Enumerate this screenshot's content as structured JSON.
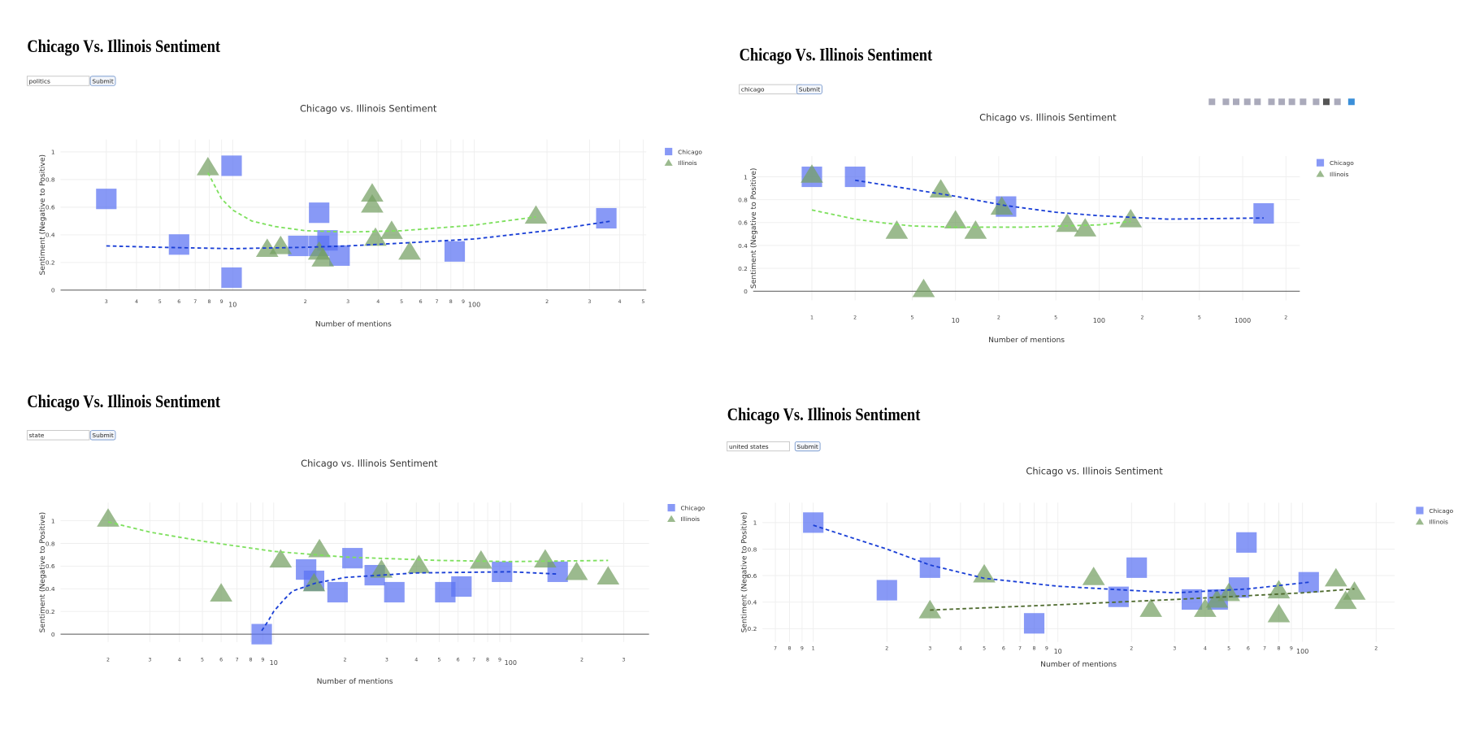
{
  "panels": [
    {
      "heading": "Chicago Vs. Illinois Sentiment",
      "query": "politics",
      "button": "Submit"
    },
    {
      "heading": "Chicago Vs. Illinois Sentiment",
      "query": "chicago",
      "button": "Submit"
    },
    {
      "heading": "Chicago Vs. Illinois Sentiment",
      "query": "state",
      "button": "Submit"
    },
    {
      "heading": "Chicago Vs. Illinois Sentiment",
      "query": "united states",
      "button": "Submit"
    }
  ],
  "chart_data": [
    {
      "type": "scatter",
      "title": "Chicago vs. Illinois Sentiment",
      "x_label": "Number of mentions",
      "y_label": "Sentiment (Negative to Positive)",
      "log_x": true,
      "grid": true,
      "xlim": [
        1.94,
        515
      ],
      "ylim": [
        0,
        1.09
      ],
      "xticks": [
        3,
        4,
        5,
        6,
        7,
        8,
        9,
        10,
        {
          "value": 20,
          "label": "2"
        },
        {
          "value": 30,
          "label": "3"
        },
        {
          "value": 40,
          "label": "4"
        },
        {
          "value": 50,
          "label": "5"
        },
        {
          "value": 60,
          "label": "6"
        },
        {
          "value": 70,
          "label": "7"
        },
        {
          "value": 80,
          "label": "8"
        },
        {
          "value": 90,
          "label": "9"
        },
        100,
        {
          "value": 200,
          "label": "2"
        },
        {
          "value": 300,
          "label": "3"
        },
        {
          "value": 400,
          "label": "4"
        },
        {
          "value": 500,
          "label": "5"
        }
      ],
      "yticks": [
        0,
        0.2,
        0.4,
        0.6,
        0.8,
        1
      ],
      "series": [
        {
          "name": "Chicago",
          "color": "#5a72f2",
          "marker": "square",
          "x": [
            3,
            6,
            9.9,
            9.9,
            22.8,
            18.7,
            22.8,
            24.7,
            27.7,
            83,
            352
          ],
          "values": [
            0.66,
            0.33,
            0.9,
            0.09,
            0.56,
            0.32,
            0.32,
            0.36,
            0.25,
            0.28,
            0.52
          ]
        },
        {
          "name": "Illinois",
          "color": "#74a062",
          "marker": "triangle",
          "x": [
            7.9,
            13.9,
            15.8,
            22.8,
            23.6,
            37.8,
            37.8,
            39,
            45.5,
            54,
            180
          ],
          "values": [
            0.89,
            0.3,
            0.32,
            0.28,
            0.23,
            0.7,
            0.62,
            0.38,
            0.43,
            0.28,
            0.54
          ]
        }
      ],
      "trendlines": [
        {
          "color": "#1a3fd6",
          "x": [
            3,
            5,
            10,
            20,
            30,
            50,
            100,
            200,
            370
          ],
          "values": [
            0.32,
            0.31,
            0.3,
            0.31,
            0.32,
            0.34,
            0.37,
            0.43,
            0.5
          ]
        },
        {
          "color": "#7ee05e",
          "x": [
            7.9,
            9,
            10,
            12,
            15,
            20,
            30,
            50,
            100,
            180
          ],
          "values": [
            0.85,
            0.66,
            0.58,
            0.5,
            0.46,
            0.43,
            0.42,
            0.43,
            0.47,
            0.53
          ]
        }
      ]
    },
    {
      "type": "scatter",
      "title": "Chicago vs. Illinois Sentiment",
      "x_label": "Number of mentions",
      "y_label": "Sentiment (Negative to Positive)",
      "log_x": true,
      "grid": true,
      "xlim": [
        0.39,
        2500
      ],
      "ylim": [
        -0.08,
        1.18
      ],
      "xticks": [
        1,
        2,
        5,
        10,
        {
          "value": 20,
          "label": "2"
        },
        {
          "value": 50,
          "label": "5"
        },
        100,
        {
          "value": 200,
          "label": "2"
        },
        {
          "value": 500,
          "label": "5"
        },
        1000,
        {
          "value": 2000,
          "label": "2"
        }
      ],
      "yticks": [
        0,
        0.2,
        0.4,
        0.6,
        0.8,
        1
      ],
      "series": [
        {
          "name": "Chicago",
          "color": "#5a72f2",
          "marker": "square",
          "x": [
            1,
            2,
            22.5,
            1400
          ],
          "values": [
            1,
            1,
            0.74,
            0.68
          ]
        },
        {
          "name": "Illinois",
          "color": "#74a062",
          "marker": "triangle",
          "x": [
            1,
            7.9,
            3.9,
            6,
            10,
            13.8,
            21,
            60,
            80,
            166
          ],
          "values": [
            1.02,
            0.89,
            0.53,
            0.02,
            0.62,
            0.53,
            0.74,
            0.59,
            0.55,
            0.63
          ]
        }
      ],
      "trendlines": [
        {
          "color": "#1a3fd6",
          "x": [
            2,
            5,
            10,
            22,
            50,
            100,
            300,
            1400
          ],
          "values": [
            0.97,
            0.89,
            0.83,
            0.75,
            0.69,
            0.66,
            0.63,
            0.64
          ]
        },
        {
          "color": "#7ee05e",
          "x": [
            1,
            2,
            3,
            5,
            10,
            30,
            100,
            166
          ],
          "values": [
            0.71,
            0.63,
            0.6,
            0.57,
            0.56,
            0.56,
            0.58,
            0.61
          ]
        }
      ]
    },
    {
      "type": "scatter",
      "title": "Chicago vs. Illinois Sentiment",
      "x_label": "Number of mentions",
      "y_label": "Sentiment (Negative to Positive)",
      "log_x": true,
      "grid": true,
      "xlim": [
        1.26,
        384
      ],
      "ylim": [
        -0.07,
        1.16
      ],
      "xticks": [
        2,
        3,
        4,
        5,
        6,
        7,
        8,
        9,
        10,
        {
          "value": 20,
          "label": "2"
        },
        {
          "value": 30,
          "label": "3"
        },
        {
          "value": 40,
          "label": "4"
        },
        {
          "value": 50,
          "label": "5"
        },
        {
          "value": 60,
          "label": "6"
        },
        {
          "value": 70,
          "label": "7"
        },
        {
          "value": 80,
          "label": "8"
        },
        {
          "value": 90,
          "label": "9"
        },
        100,
        {
          "value": 200,
          "label": "2"
        },
        {
          "value": 300,
          "label": "3"
        }
      ],
      "yticks": [
        0,
        0.2,
        0.4,
        0.6,
        0.8,
        1
      ],
      "series": [
        {
          "name": "Chicago",
          "color": "#5a72f2",
          "marker": "square",
          "x": [
            8.9,
            13.7,
            14.8,
            18.6,
            21.5,
            26.7,
            32.3,
            53,
            62,
            92,
            158
          ],
          "values": [
            0,
            0.57,
            0.47,
            0.37,
            0.67,
            0.52,
            0.37,
            0.37,
            0.42,
            0.55,
            0.55
          ]
        },
        {
          "name": "Illinois",
          "color": "#74a062",
          "marker": "triangle",
          "x": [
            2,
            6,
            10.7,
            15.6,
            14.8,
            28.5,
            41,
            75,
            140,
            190,
            258
          ],
          "values": [
            1.02,
            0.36,
            0.66,
            0.75,
            0.45,
            0.57,
            0.61,
            0.65,
            0.66,
            0.55,
            0.51
          ]
        }
      ],
      "trendlines": [
        {
          "color": "#1a3fd6",
          "x": [
            8.9,
            9.5,
            10,
            11,
            12,
            15,
            20,
            40,
            100,
            158
          ],
          "values": [
            0.03,
            0.12,
            0.2,
            0.3,
            0.38,
            0.45,
            0.5,
            0.54,
            0.55,
            0.53
          ]
        },
        {
          "color": "#7ee05e",
          "x": [
            2,
            3,
            5,
            10,
            20,
            50,
            100,
            258
          ],
          "values": [
            0.99,
            0.9,
            0.82,
            0.73,
            0.68,
            0.65,
            0.64,
            0.65
          ]
        }
      ]
    },
    {
      "type": "scatter",
      "title": "Chicago vs. Illinois Sentiment",
      "x_label": "Number of mentions",
      "y_label": "Sentiment (Negative to Positive)",
      "log_x": true,
      "grid": true,
      "xlim": [
        0.62,
        238
      ],
      "ylim": [
        0.1,
        1.15
      ],
      "xticks": [
        {
          "value": 0.7,
          "label": "7"
        },
        {
          "value": 0.8,
          "label": "8"
        },
        {
          "value": 0.9,
          "label": "9"
        },
        1,
        2,
        3,
        4,
        5,
        6,
        7,
        8,
        9,
        10,
        {
          "value": 20,
          "label": "2"
        },
        {
          "value": 30,
          "label": "3"
        },
        {
          "value": 40,
          "label": "4"
        },
        {
          "value": 50,
          "label": "5"
        },
        {
          "value": 60,
          "label": "6"
        },
        {
          "value": 70,
          "label": "7"
        },
        {
          "value": 80,
          "label": "8"
        },
        {
          "value": 90,
          "label": "9"
        },
        100,
        {
          "value": 200,
          "label": "2"
        }
      ],
      "yticks": [
        0.2,
        0.4,
        0.6,
        0.8,
        1
      ],
      "series": [
        {
          "name": "Chicago",
          "color": "#5a72f2",
          "marker": "square",
          "x": [
            1,
            2,
            3,
            8,
            21,
            17.7,
            35.3,
            45,
            55,
            59,
            106
          ],
          "values": [
            1,
            0.49,
            0.66,
            0.24,
            0.66,
            0.44,
            0.42,
            0.42,
            0.51,
            0.85,
            0.55
          ]
        },
        {
          "name": "Illinois",
          "color": "#74a062",
          "marker": "triangle",
          "x": [
            3,
            5,
            14,
            24,
            40,
            44.7,
            50,
            80,
            80,
            137,
            150,
            163
          ],
          "values": [
            0.34,
            0.61,
            0.59,
            0.35,
            0.35,
            0.42,
            0.47,
            0.49,
            0.31,
            0.58,
            0.41,
            0.48
          ]
        }
      ],
      "trendlines": [
        {
          "color": "#1a3fd6",
          "x": [
            1,
            2,
            3,
            5,
            10,
            30,
            60,
            106
          ],
          "values": [
            0.98,
            0.8,
            0.68,
            0.58,
            0.52,
            0.47,
            0.5,
            0.55
          ]
        },
        {
          "color": "#4f6b2f",
          "x": [
            3,
            10,
            30,
            100,
            163
          ],
          "values": [
            0.34,
            0.38,
            0.42,
            0.47,
            0.5
          ]
        }
      ]
    }
  ]
}
